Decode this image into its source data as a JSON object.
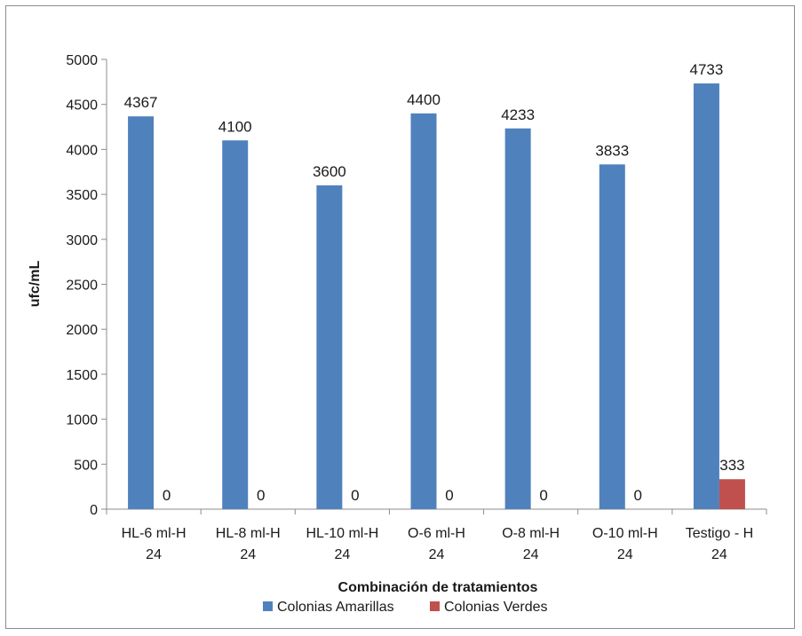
{
  "chart_data": {
    "type": "bar",
    "title": "",
    "xlabel": "Combinación de tratamientos",
    "ylabel": "ufc/mL",
    "ylim": [
      0,
      5000
    ],
    "yticks": [
      0,
      500,
      1000,
      1500,
      2000,
      2500,
      3000,
      3500,
      4000,
      4500,
      5000
    ],
    "grid": false,
    "legend_position": "bottom",
    "categories": [
      [
        "HL-6 ml-H",
        "24"
      ],
      [
        "HL-8 ml-H",
        "24"
      ],
      [
        "HL-10 ml-H",
        "24"
      ],
      [
        "O-6 ml-H",
        "24"
      ],
      [
        "O-8 ml-H",
        "24"
      ],
      [
        "O-10 ml-H",
        "24"
      ],
      [
        "Testigo - H",
        "24"
      ]
    ],
    "series": [
      {
        "name": "Colonias Amarillas",
        "color": "#4f81bd",
        "values": [
          4367,
          4100,
          3600,
          4400,
          4233,
          3833,
          4733
        ]
      },
      {
        "name": "Colonias Verdes",
        "color": "#c0504d",
        "values": [
          0,
          0,
          0,
          0,
          0,
          0,
          333
        ]
      }
    ]
  }
}
